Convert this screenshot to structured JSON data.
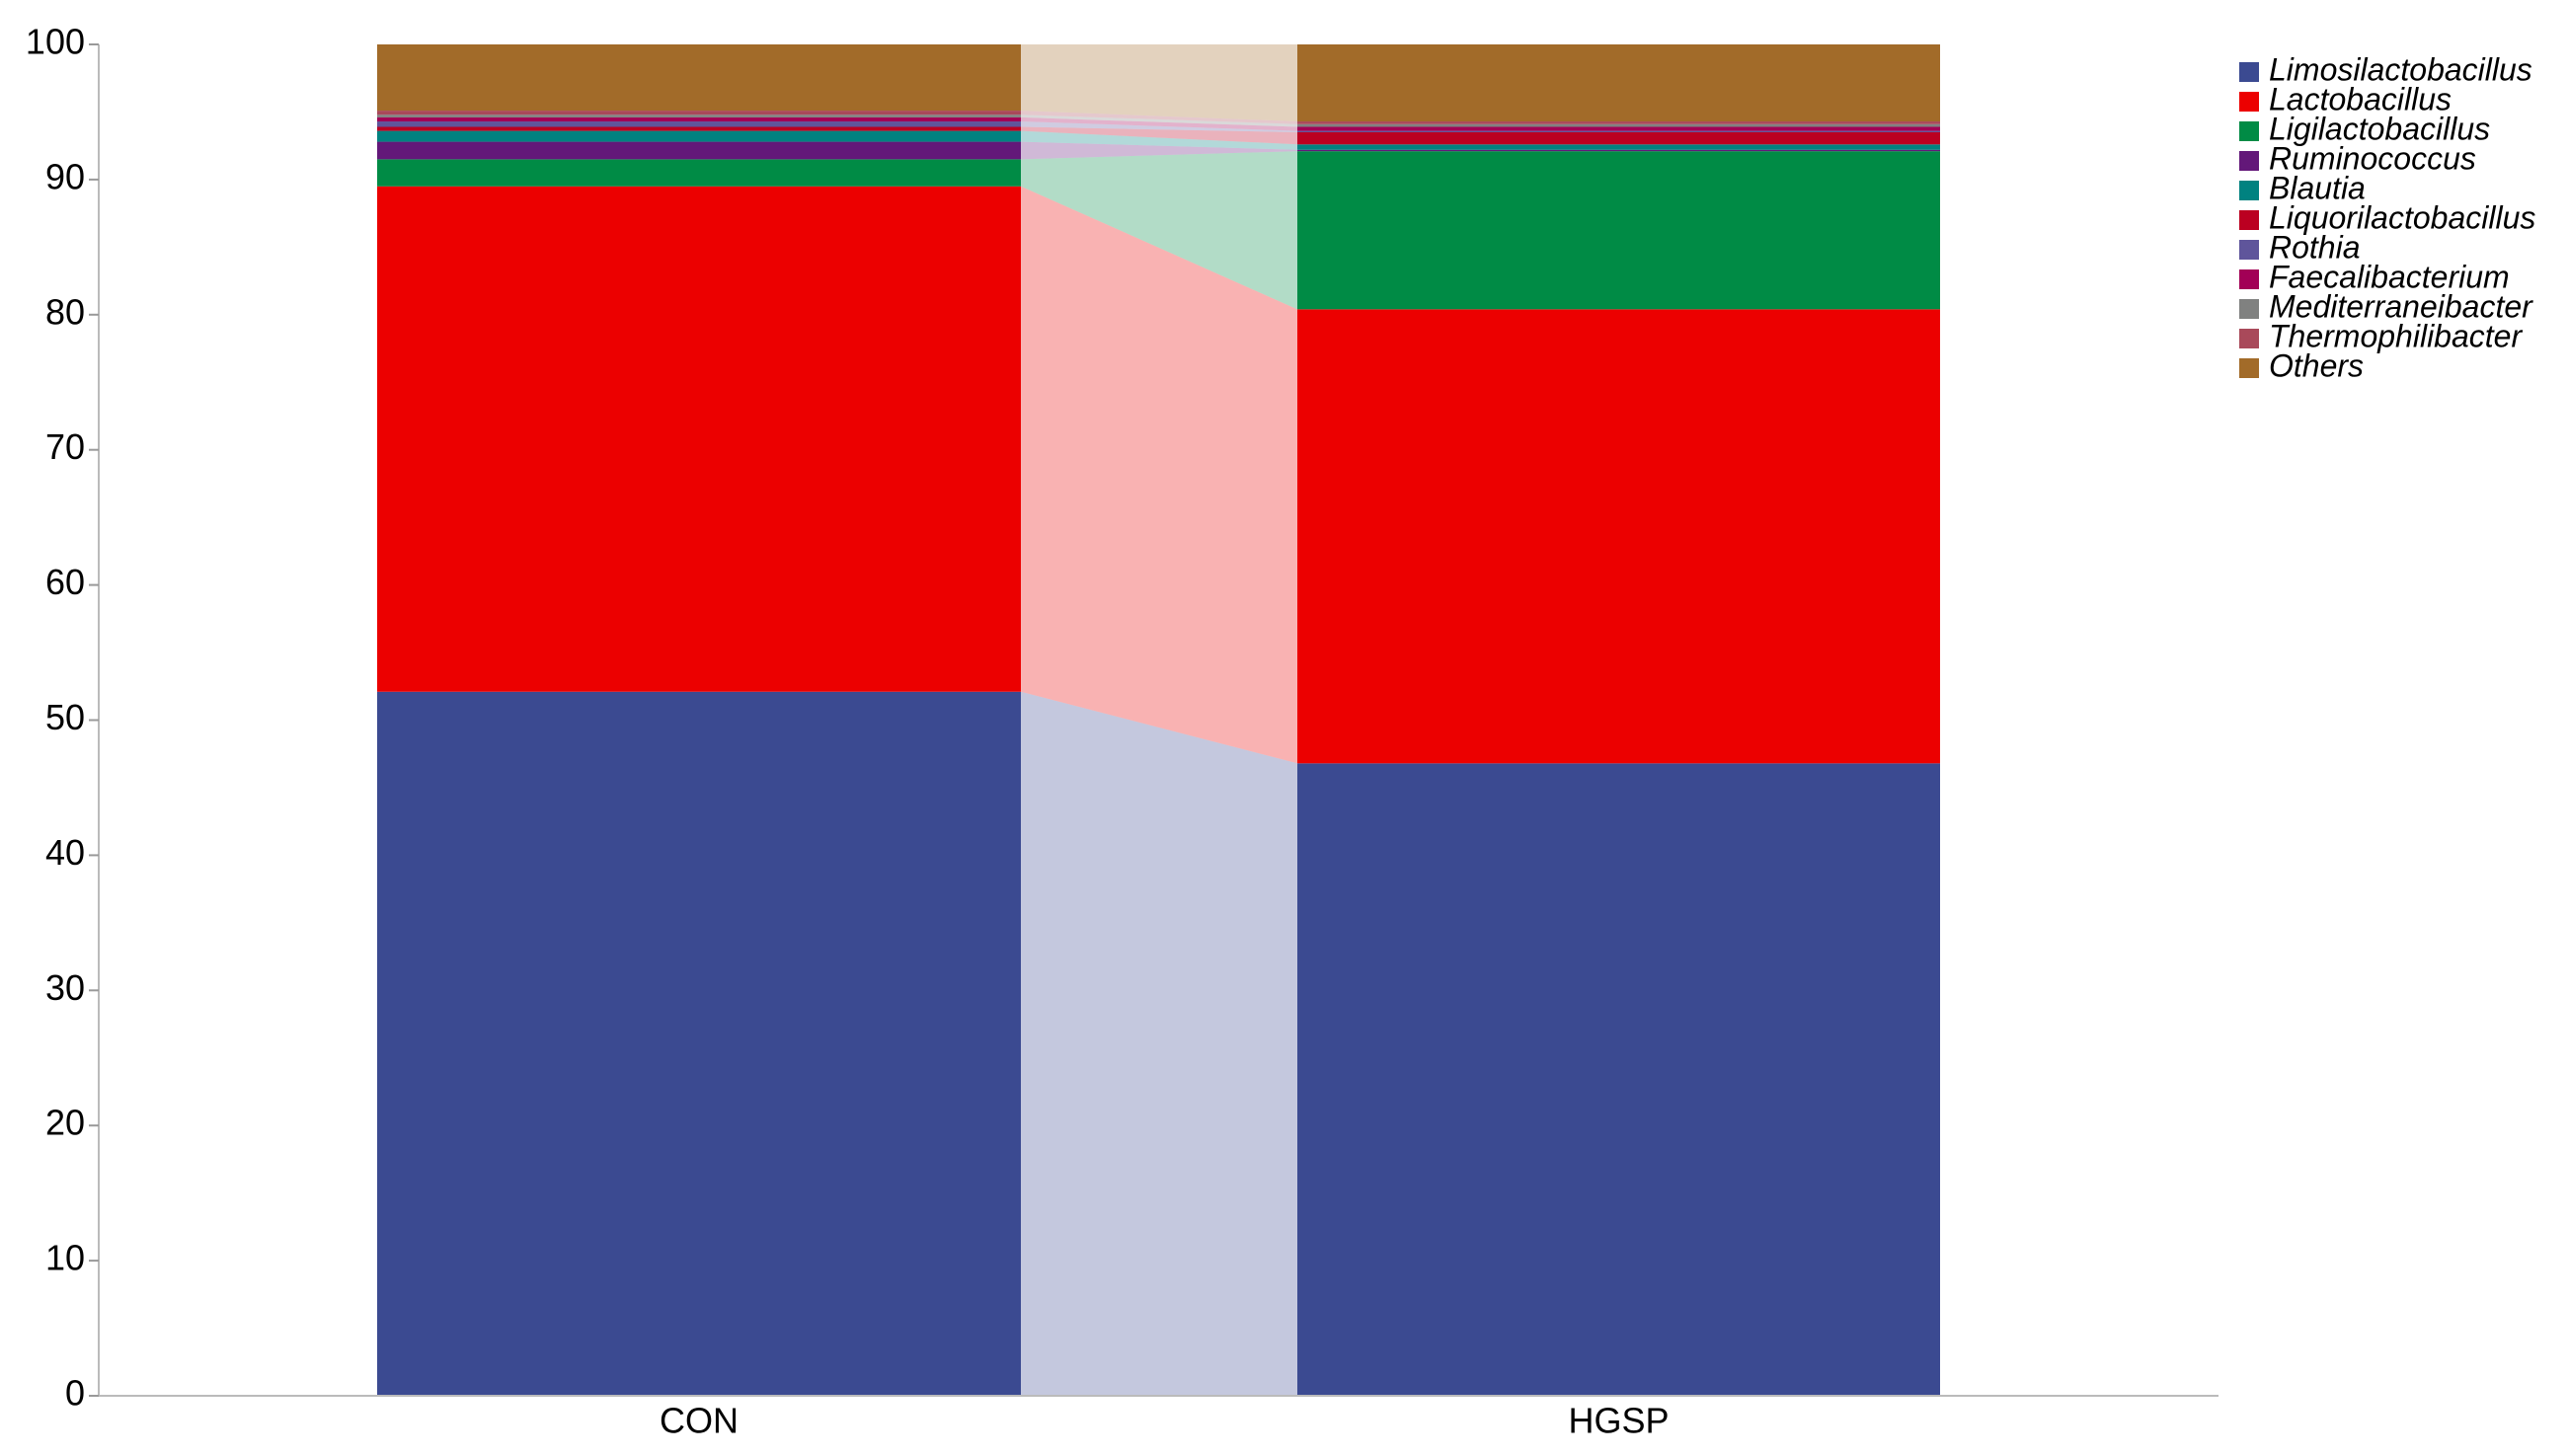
{
  "chart_data": {
    "type": "stacked_bar_flow",
    "categories": [
      "CON",
      "HGSP"
    ],
    "series": [
      {
        "name": "Limosilactobacillus",
        "color": "#3b4a91",
        "values": [
          52.1,
          46.8
        ]
      },
      {
        "name": "Lactobacillus",
        "color": "#ec0000",
        "values": [
          37.4,
          33.6
        ]
      },
      {
        "name": "Ligilactobacillus",
        "color": "#008b45",
        "values": [
          2.0,
          11.7
        ]
      },
      {
        "name": "Ruminococcus",
        "color": "#631879",
        "values": [
          1.3,
          0.1
        ]
      },
      {
        "name": "Blautia",
        "color": "#008280",
        "values": [
          0.8,
          0.4
        ]
      },
      {
        "name": "Liquorilactobacillus",
        "color": "#bb0021",
        "values": [
          0.3,
          0.9
        ]
      },
      {
        "name": "Rothia",
        "color": "#5f559b",
        "values": [
          0.4,
          0.1
        ]
      },
      {
        "name": "Faecalibacterium",
        "color": "#a20056",
        "values": [
          0.3,
          0.3
        ]
      },
      {
        "name": "Mediterraneibacter",
        "color": "#808180",
        "values": [
          0.2,
          0.2
        ]
      },
      {
        "name": "Thermophilibacter",
        "color": "#a9495a",
        "values": [
          0.3,
          0.2
        ]
      },
      {
        "name": "Others",
        "color": "#a26b29",
        "values": [
          4.9,
          5.7
        ]
      }
    ],
    "ylim": [
      0,
      100
    ],
    "yticks": [
      0,
      10,
      20,
      30,
      40,
      50,
      60,
      70,
      80,
      90,
      100
    ],
    "legend": "upper right",
    "flow_opacity": 0.3
  }
}
